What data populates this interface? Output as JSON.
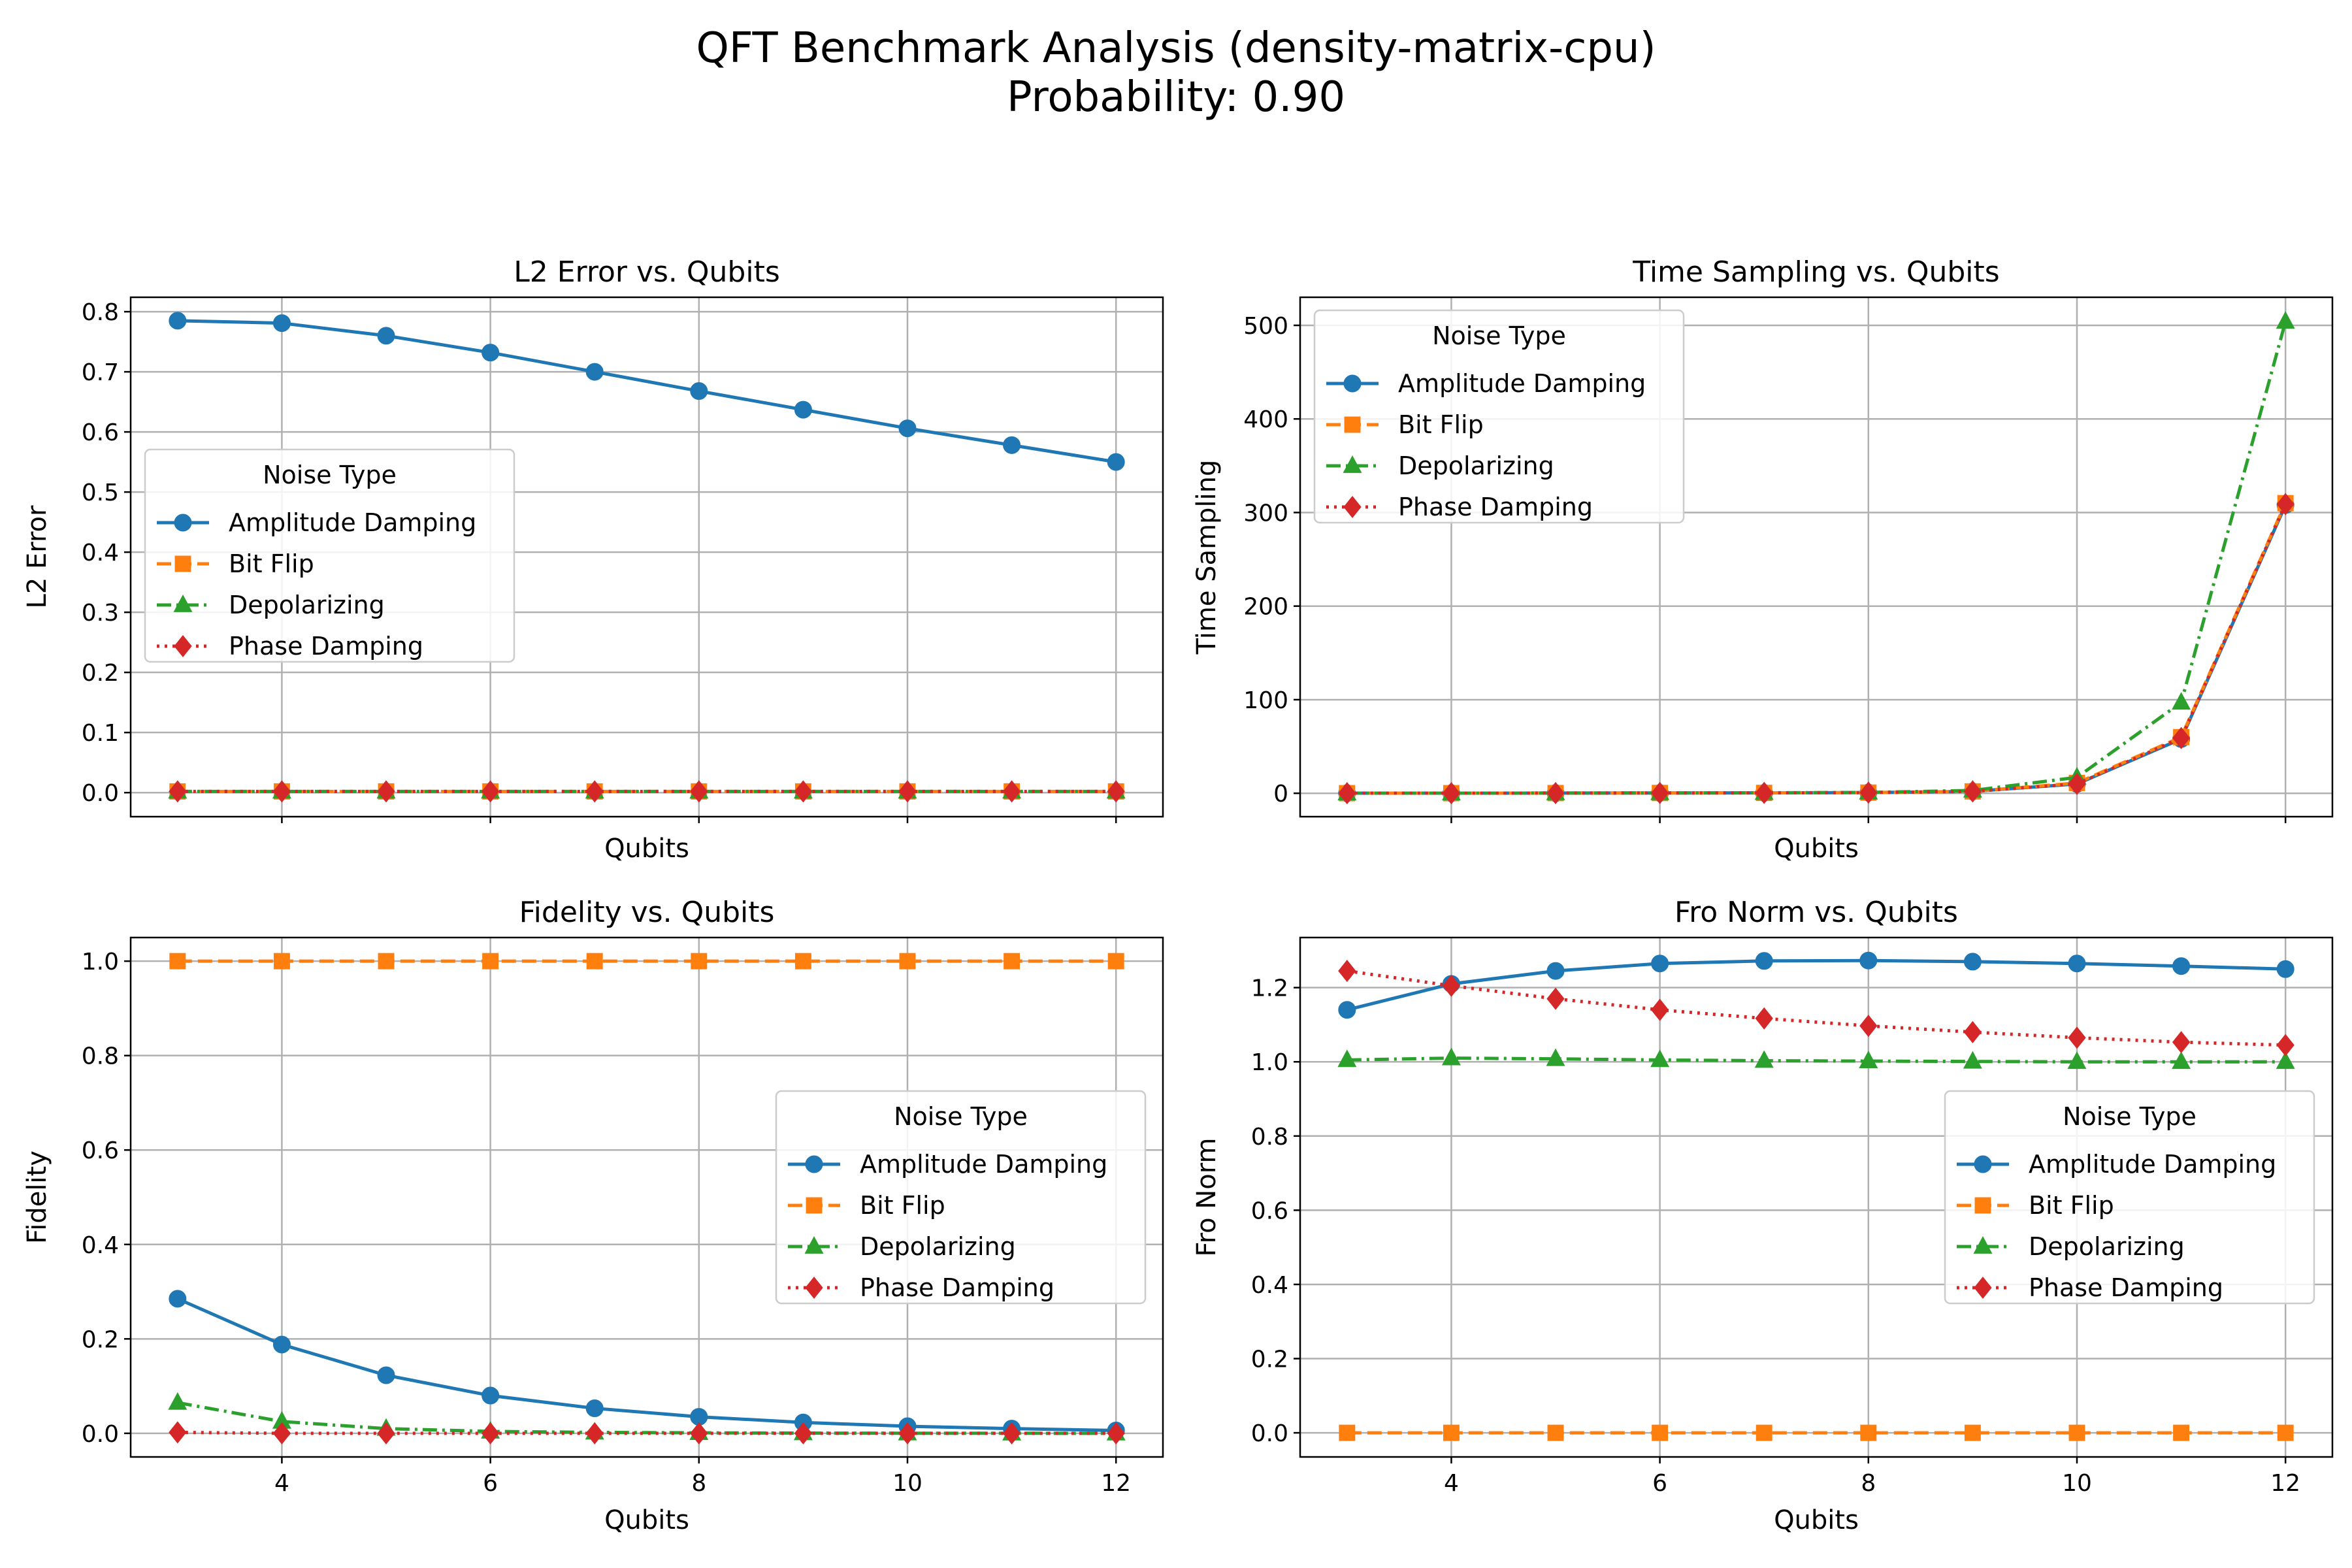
{
  "figure": {
    "title": "QFT Benchmark Analysis (density-matrix-cpu)",
    "subtitle": "Probability: 0.90"
  },
  "chart_data": [
    {
      "type": "line",
      "title": "L2 Error vs. Qubits",
      "xlabel": "Qubits",
      "ylabel": "L2 Error",
      "xlim": [
        2.55,
        12.45
      ],
      "ylim": [
        -0.04,
        0.824
      ],
      "xticks": [
        4,
        6,
        8,
        10,
        12
      ],
      "xtick_labels_visible": false,
      "yticks": [
        0.0,
        0.1,
        0.2,
        0.3,
        0.4,
        0.5,
        0.6,
        0.7,
        0.8
      ],
      "ytick_labels": [
        "0.0",
        "0.1",
        "0.2",
        "0.3",
        "0.4",
        "0.5",
        "0.6",
        "0.7",
        "0.8"
      ],
      "grid": true,
      "legend": {
        "title": "Noise Type",
        "placement": "center-left"
      },
      "x": [
        3,
        4,
        5,
        6,
        7,
        8,
        9,
        10,
        11,
        12
      ],
      "series": [
        {
          "name": "Amplitude Damping",
          "values": [
            0.785,
            0.781,
            0.76,
            0.732,
            0.7,
            0.668,
            0.637,
            0.606,
            0.578,
            0.55
          ]
        },
        {
          "name": "Bit Flip",
          "values": [
            0.002,
            0.002,
            0.002,
            0.002,
            0.002,
            0.002,
            0.002,
            0.002,
            0.002,
            0.002
          ]
        },
        {
          "name": "Depolarizing",
          "values": [
            0.002,
            0.002,
            0.002,
            0.002,
            0.002,
            0.002,
            0.002,
            0.002,
            0.002,
            0.002
          ]
        },
        {
          "name": "Phase Damping",
          "values": [
            0.002,
            0.002,
            0.002,
            0.002,
            0.002,
            0.002,
            0.002,
            0.002,
            0.002,
            0.002
          ]
        }
      ]
    },
    {
      "type": "line",
      "title": "Time Sampling vs. Qubits",
      "xlabel": "Qubits",
      "ylabel": "Time Sampling",
      "xlim": [
        2.55,
        12.45
      ],
      "ylim": [
        -25,
        530
      ],
      "xticks": [
        4,
        6,
        8,
        10,
        12
      ],
      "xtick_labels_visible": false,
      "yticks": [
        0,
        100,
        200,
        300,
        400,
        500
      ],
      "ytick_labels": [
        "0",
        "100",
        "200",
        "300",
        "400",
        "500"
      ],
      "grid": true,
      "legend": {
        "title": "Noise Type",
        "placement": "upper-left"
      },
      "x": [
        3,
        4,
        5,
        6,
        7,
        8,
        9,
        10,
        11,
        12
      ],
      "series": [
        {
          "name": "Amplitude Damping",
          "values": [
            0.1,
            0.1,
            0.2,
            0.3,
            0.4,
            0.7,
            2,
            10,
            58,
            308
          ]
        },
        {
          "name": "Bit Flip",
          "values": [
            0.1,
            0.1,
            0.2,
            0.3,
            0.4,
            0.7,
            2,
            11,
            60,
            310
          ]
        },
        {
          "name": "Depolarizing",
          "values": [
            0.1,
            0.1,
            0.2,
            0.3,
            0.5,
            0.9,
            3,
            17,
            97,
            504
          ]
        },
        {
          "name": "Phase Damping",
          "values": [
            0.1,
            0.1,
            0.2,
            0.3,
            0.4,
            0.7,
            2,
            10,
            59,
            309
          ]
        }
      ]
    },
    {
      "type": "line",
      "title": "Fidelity vs. Qubits",
      "xlabel": "Qubits",
      "ylabel": "Fidelity",
      "xlim": [
        2.55,
        12.45
      ],
      "ylim": [
        -0.05,
        1.05
      ],
      "xticks": [
        4,
        6,
        8,
        10,
        12
      ],
      "xtick_labels": [
        "4",
        "6",
        "8",
        "10",
        "12"
      ],
      "yticks": [
        0.0,
        0.2,
        0.4,
        0.6,
        0.8,
        1.0
      ],
      "ytick_labels": [
        "0.0",
        "0.2",
        "0.4",
        "0.6",
        "0.8",
        "1.0"
      ],
      "grid": true,
      "legend": {
        "title": "Noise Type",
        "placement": "center-right"
      },
      "x": [
        3,
        4,
        5,
        6,
        7,
        8,
        9,
        10,
        11,
        12
      ],
      "series": [
        {
          "name": "Amplitude Damping",
          "values": [
            0.285,
            0.188,
            0.123,
            0.08,
            0.053,
            0.035,
            0.023,
            0.015,
            0.01,
            0.006
          ]
        },
        {
          "name": "Bit Flip",
          "values": [
            1.0,
            1.0,
            1.0,
            1.0,
            1.0,
            1.0,
            1.0,
            1.0,
            1.0,
            1.0
          ]
        },
        {
          "name": "Depolarizing",
          "values": [
            0.065,
            0.025,
            0.01,
            0.004,
            0.002,
            0.001,
            0.0005,
            0.0002,
            0.0001,
            0.0
          ]
        },
        {
          "name": "Phase Damping",
          "values": [
            0.002,
            0.0,
            0.0,
            0.0,
            0.0,
            0.0,
            0.0,
            0.0,
            0.0,
            0.0
          ]
        }
      ]
    },
    {
      "type": "line",
      "title": "Fro Norm vs. Qubits",
      "xlabel": "Qubits",
      "ylabel": "Fro Norm",
      "xlim": [
        2.55,
        12.45
      ],
      "ylim": [
        -0.065,
        1.335
      ],
      "xticks": [
        4,
        6,
        8,
        10,
        12
      ],
      "xtick_labels": [
        "4",
        "6",
        "8",
        "10",
        "12"
      ],
      "yticks": [
        0.0,
        0.2,
        0.4,
        0.6,
        0.8,
        1.0,
        1.2
      ],
      "ytick_labels": [
        "0.0",
        "0.2",
        "0.4",
        "0.6",
        "0.8",
        "1.0",
        "1.2"
      ],
      "grid": true,
      "legend": {
        "title": "Noise Type",
        "placement": "center-right"
      },
      "x": [
        3,
        4,
        5,
        6,
        7,
        8,
        9,
        10,
        11,
        12
      ],
      "series": [
        {
          "name": "Amplitude Damping",
          "values": [
            1.14,
            1.21,
            1.245,
            1.265,
            1.272,
            1.273,
            1.27,
            1.265,
            1.258,
            1.25
          ]
        },
        {
          "name": "Bit Flip",
          "values": [
            0.0,
            0.0,
            0.0,
            0.0,
            0.0,
            0.0,
            0.0,
            0.0,
            0.0,
            0.0
          ]
        },
        {
          "name": "Depolarizing",
          "values": [
            1.005,
            1.01,
            1.008,
            1.005,
            1.003,
            1.002,
            1.001,
            1.0,
            1.0,
            1.0
          ]
        },
        {
          "name": "Phase Damping",
          "values": [
            1.245,
            1.205,
            1.17,
            1.14,
            1.117,
            1.097,
            1.08,
            1.065,
            1.053,
            1.045
          ]
        }
      ]
    }
  ],
  "styles": {
    "series_colors": [
      "#1f77b4",
      "#ff7f0e",
      "#2ca02c",
      "#d62728"
    ],
    "series_markers": [
      "circle",
      "square",
      "triangle",
      "diamond"
    ],
    "series_line_styles": [
      "solid",
      "dashed",
      "dashdot",
      "dotted"
    ]
  }
}
